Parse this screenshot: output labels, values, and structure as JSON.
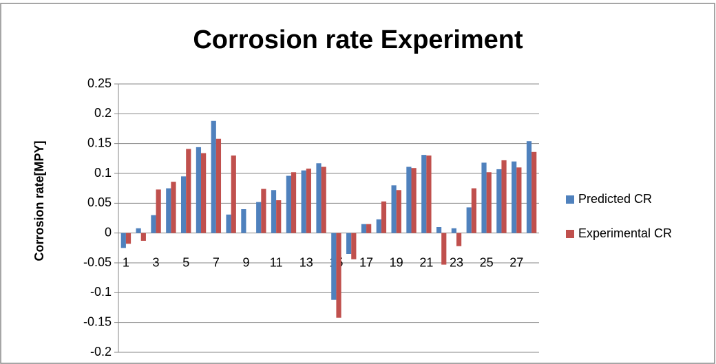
{
  "chart_data": {
    "type": "bar",
    "title": "Corrosion rate Experiment",
    "y_label": "Corrosion rate[MPY]",
    "categories": [
      "1",
      null,
      "3",
      null,
      "5",
      null,
      "7",
      null,
      "9",
      null,
      "11",
      null,
      "13",
      null,
      "15",
      null,
      "17",
      null,
      "19",
      null,
      "21",
      null,
      "23",
      null,
      "25",
      null,
      "27",
      null
    ],
    "series": [
      {
        "name": "Predicted CR",
        "color": "#4f81bd",
        "values": [
          -0.025,
          0.008,
          0.03,
          0.075,
          0.095,
          0.144,
          0.188,
          0.031,
          0.04,
          0.052,
          0.072,
          0.096,
          0.105,
          0.117,
          -0.112,
          -0.035,
          0.015,
          0.023,
          0.08,
          0.111,
          0.131,
          0.01,
          0.008,
          0.043,
          0.118,
          0.107,
          0.12,
          0.154
        ]
      },
      {
        "name": "Experimental CR",
        "color": "#c0504d",
        "values": [
          -0.018,
          -0.013,
          0.073,
          0.086,
          0.141,
          0.134,
          0.158,
          0.13,
          0,
          0.074,
          0.055,
          0.102,
          0.108,
          0.111,
          -0.142,
          -0.044,
          0.015,
          0.053,
          0.072,
          0.109,
          0.13,
          -0.053,
          -0.022,
          0.075,
          0.102,
          0.122,
          0.11,
          0.136
        ]
      }
    ],
    "ylim": [
      -0.2,
      0.25
    ],
    "yticks": [
      -0.2,
      -0.15,
      -0.1,
      -0.05,
      0,
      0.05,
      0.1,
      0.15,
      0.2,
      0.25
    ],
    "grid": true,
    "legend": "right"
  }
}
